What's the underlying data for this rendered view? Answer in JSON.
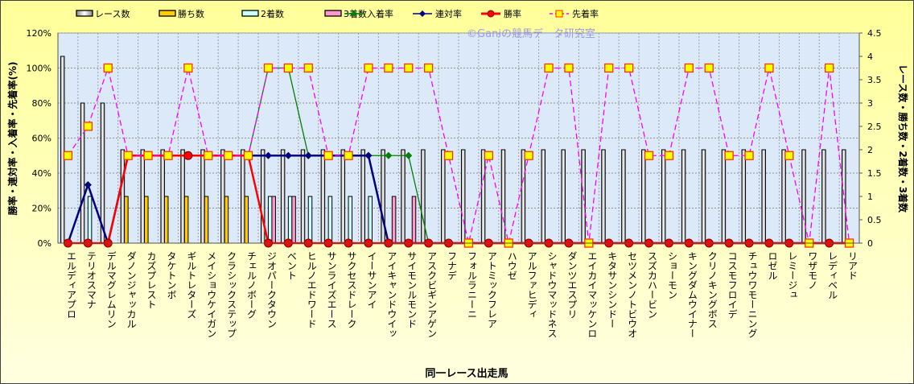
{
  "chart_data": {
    "type": "bar+line",
    "watermark": "©Ganiの競馬データ研究室",
    "xlabel": "同一レース出走馬",
    "ylabel_left": "勝率・連対率・入着率・先着率(%)",
    "ylabel_right": "レース数・勝ち数・2着数・3着数",
    "ylim_left": [
      0,
      120
    ],
    "ylim_right": [
      0,
      4.5
    ],
    "yticks_left": [
      "0%",
      "20%",
      "40%",
      "60%",
      "80%",
      "100%",
      "120%"
    ],
    "yticks_right": [
      "0",
      "0.5",
      "1",
      "1.5",
      "2",
      "2.5",
      "3",
      "3.5",
      "4",
      "4.5"
    ],
    "grid": true,
    "legend_position": "top",
    "categories": [
      "エルディアプロ",
      "テリオスマナ",
      "デルマグレムリン",
      "ダノンジャッカル",
      "カズプレスト",
      "タケトンボ",
      "ギルトレターズ",
      "メイショウケイガン",
      "クラシックステップ",
      "チェルノボーグ",
      "ジオパークタウン",
      "ベント",
      "ヒルノエドワード",
      "サンライズエース",
      "サクセスドレーク",
      "イーサンアイ",
      "アイキャンドウイッ",
      "サイモンルモンド",
      "アスクビギンアゲン",
      "フナデ",
      "フォルラニーニ",
      "アトミックフレア",
      "ハウゼ",
      "アルファヒディ",
      "シャドウマッドネス",
      "ダンツエスプリ",
      "エイカイマッケンロ",
      "キタサンシンドー",
      "セツメンノトビウオ",
      "スズカハービン",
      "ショーモン",
      "キングダムウイナー",
      "クリノキングボス",
      "コスモフロイデ",
      "チュウワモーニング",
      "ロゼル",
      "レミージュ",
      "ワザモノ",
      "レディベル",
      "リアド"
    ],
    "bar_series": [
      {
        "name": "レース数",
        "color": "#ffffff",
        "values": [
          4,
          3,
          3,
          2,
          2,
          2,
          2,
          2,
          2,
          2,
          2,
          2,
          2,
          2,
          2,
          2,
          2,
          2,
          2,
          2,
          2,
          2,
          2,
          2,
          2,
          2,
          2,
          2,
          2,
          2,
          2,
          2,
          2,
          2,
          2,
          2,
          2,
          2,
          2,
          2
        ]
      },
      {
        "name": "勝ち数",
        "color": "#ffcc00",
        "values": [
          0,
          0,
          0,
          1,
          1,
          1,
          1,
          1,
          1,
          1,
          0,
          0,
          0,
          0,
          0,
          0,
          0,
          0,
          0,
          0,
          0,
          0,
          0,
          0,
          0,
          0,
          0,
          0,
          0,
          0,
          0,
          0,
          0,
          0,
          0,
          0,
          0,
          0,
          0,
          0
        ]
      },
      {
        "name": "2着数",
        "color": "#ccffff",
        "values": [
          0,
          1,
          0,
          0,
          0,
          0,
          0,
          0,
          0,
          0,
          1,
          1,
          1,
          1,
          1,
          1,
          0,
          0,
          0,
          0,
          0,
          0,
          0,
          0,
          0,
          0,
          0,
          0,
          0,
          0,
          0,
          0,
          0,
          0,
          0,
          0,
          0,
          0,
          0,
          0
        ]
      },
      {
        "name": "3着数",
        "color": "#ff99cc",
        "values": [
          0,
          0,
          0,
          0,
          0,
          0,
          0,
          0,
          0,
          0,
          1,
          1,
          0,
          0,
          0,
          0,
          1,
          1,
          0,
          0,
          0,
          0,
          0,
          0,
          0,
          0,
          0,
          0,
          0,
          0,
          0,
          0,
          0,
          0,
          0,
          0,
          0,
          0,
          0,
          0
        ]
      }
    ],
    "line_series": [
      {
        "name": "入着率",
        "color": "#008000",
        "marker": "diamond",
        "values": [
          0,
          33.3,
          0,
          50,
          50,
          50,
          50,
          50,
          50,
          50,
          100,
          100,
          50,
          50,
          50,
          50,
          50,
          50,
          0,
          0,
          0,
          0,
          0,
          0,
          0,
          0,
          0,
          0,
          0,
          0,
          0,
          0,
          0,
          0,
          0,
          0,
          0,
          0,
          0,
          0
        ]
      },
      {
        "name": "連対率",
        "color": "#000080",
        "marker": "diamond",
        "values": [
          0,
          33.3,
          0,
          50,
          50,
          50,
          50,
          50,
          50,
          50,
          50,
          50,
          50,
          50,
          50,
          50,
          0,
          0,
          0,
          0,
          0,
          0,
          0,
          0,
          0,
          0,
          0,
          0,
          0,
          0,
          0,
          0,
          0,
          0,
          0,
          0,
          0,
          0,
          0,
          0
        ]
      },
      {
        "name": "勝率",
        "color": "#ff0000",
        "marker": "circle",
        "values": [
          0,
          0,
          0,
          50,
          50,
          50,
          50,
          50,
          50,
          50,
          0,
          0,
          0,
          0,
          0,
          0,
          0,
          0,
          0,
          0,
          0,
          0,
          0,
          0,
          0,
          0,
          0,
          0,
          0,
          0,
          0,
          0,
          0,
          0,
          0,
          0,
          0,
          0,
          0,
          0
        ]
      },
      {
        "name": "先着率",
        "color": "#ff00ff",
        "marker": "square",
        "values": [
          50,
          66.7,
          100,
          50,
          50,
          50,
          100,
          50,
          50,
          50,
          100,
          100,
          100,
          50,
          50,
          100,
          100,
          100,
          100,
          50,
          0,
          50,
          0,
          50,
          100,
          100,
          0,
          100,
          100,
          50,
          50,
          100,
          100,
          50,
          50,
          100,
          50,
          0,
          100,
          0
        ]
      }
    ]
  }
}
